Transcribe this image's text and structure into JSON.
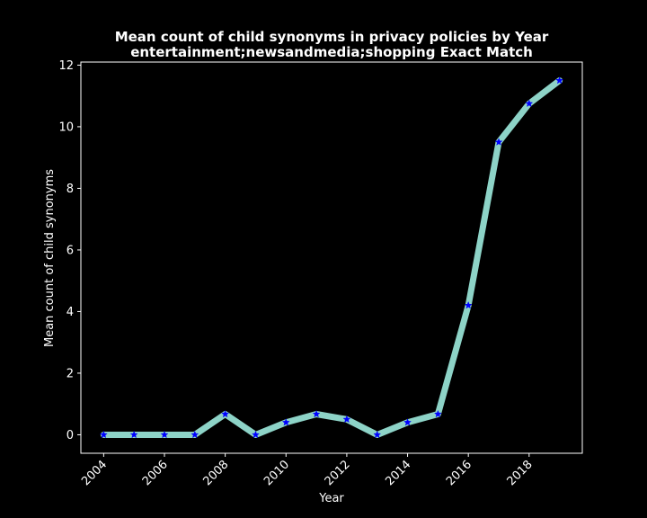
{
  "chart_data": {
    "type": "line",
    "title_line1": "Mean count of child synonyms in privacy policies by Year",
    "title_line2": "entertainment;newsandmedia;shopping Exact Match",
    "xlabel": "Year",
    "ylabel": "Mean count of child synonyms",
    "x": [
      2004,
      2005,
      2006,
      2007,
      2008,
      2009,
      2010,
      2011,
      2012,
      2013,
      2014,
      2015,
      2016,
      2017,
      2018,
      2019
    ],
    "series": [
      {
        "values": [
          0,
          0,
          0,
          0,
          0.67,
          0,
          0.4,
          0.67,
          0.5,
          0,
          0.4,
          0.67,
          4.2,
          9.5,
          10.75,
          11.5
        ]
      }
    ],
    "xlim": [
      2003.25,
      2019.75
    ],
    "ylim": [
      -0.6,
      12.1
    ],
    "xticks": [
      "2004",
      "2006",
      "2008",
      "2010",
      "2012",
      "2014",
      "2016",
      "2018"
    ],
    "yticks": [
      "0",
      "2",
      "4",
      "6",
      "8",
      "10",
      "12"
    ],
    "grid": false,
    "line_color": "#8dd3c7",
    "marker_color": "#0000ff",
    "marker": "star",
    "background": "#000000",
    "axis_color": "#ffffff"
  }
}
